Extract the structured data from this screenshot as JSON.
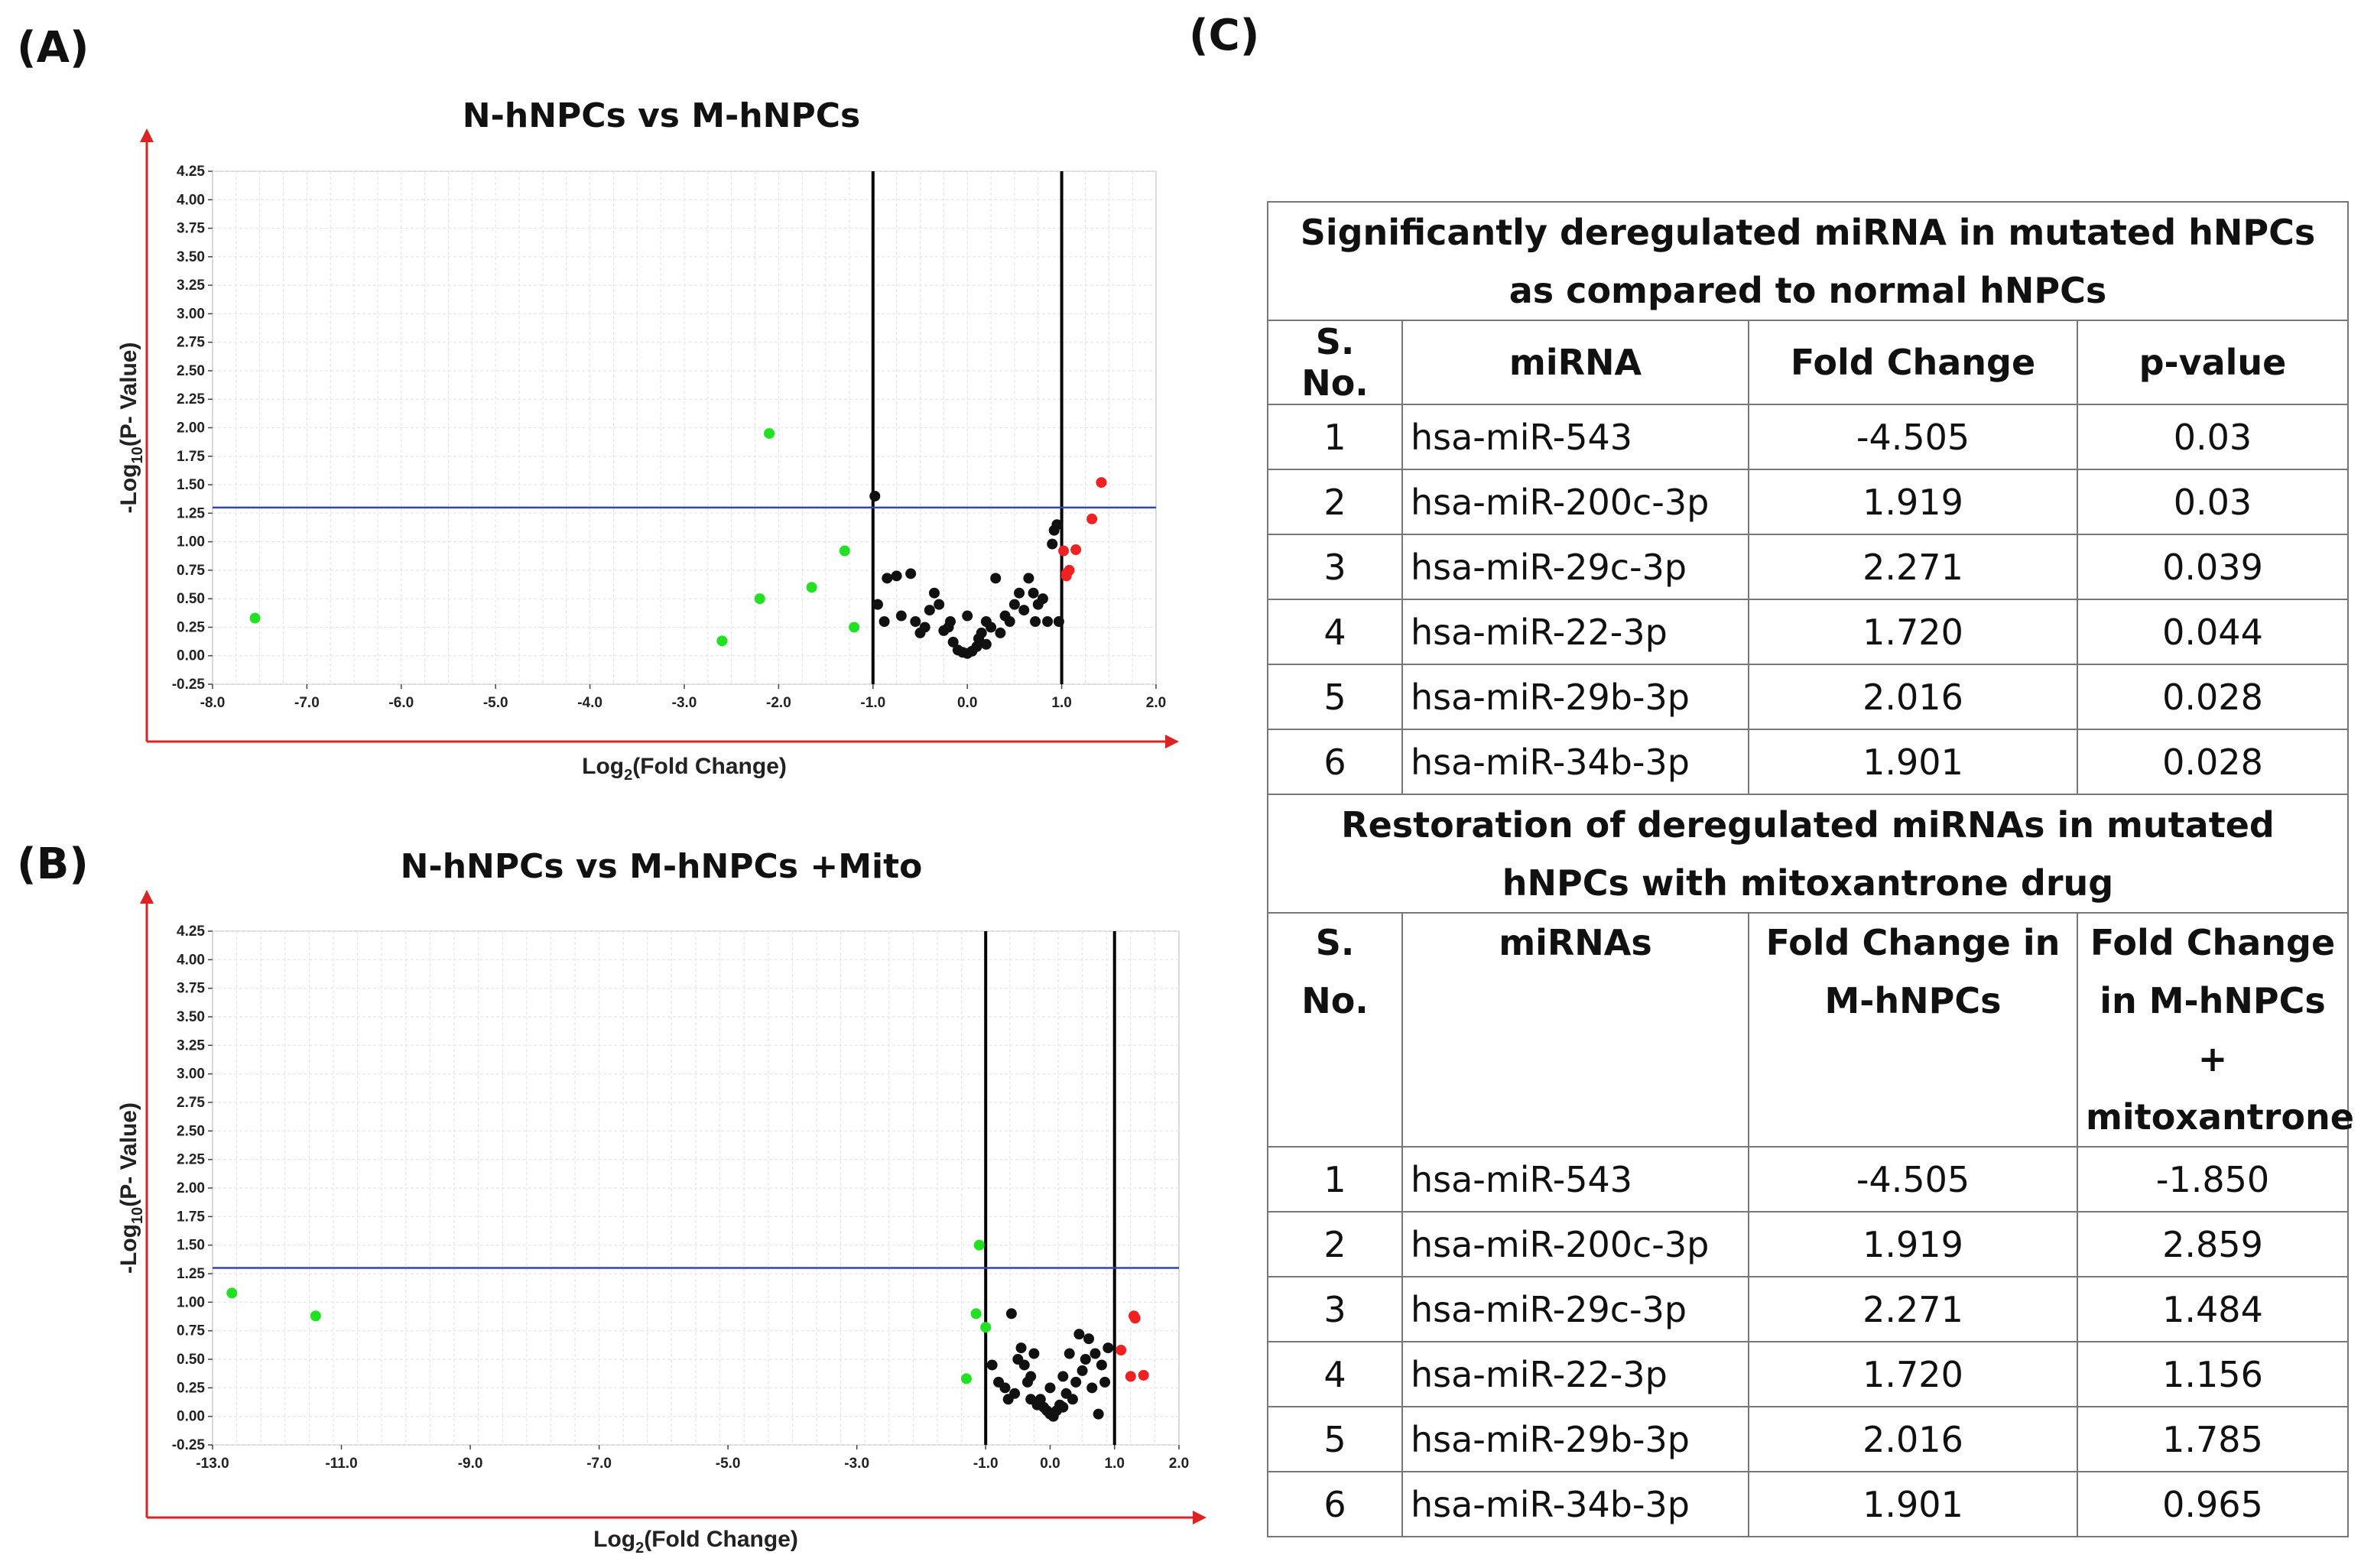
{
  "panel_labels": {
    "a": "(A)",
    "b": "(B)",
    "c": "(C)"
  },
  "chart_data": [
    {
      "type": "scatter",
      "title": "N-hNPCs vs M-hNPCs",
      "xlabel_main": "Log",
      "xlabel_sub": "2",
      "xlabel_rest": "(Fold Change)",
      "ylabel_main": "-Log",
      "ylabel_sub": "10",
      "ylabel_rest": "(P- Value)",
      "xlim": [
        -8.0,
        2.0
      ],
      "ylim": [
        -0.25,
        4.25
      ],
      "xticks": [
        -8.0,
        -7.0,
        -6.0,
        -5.0,
        -4.0,
        -3.0,
        -2.0,
        -1.0,
        0.0,
        1.0,
        2.0
      ],
      "yticks": [
        -0.25,
        0.0,
        0.25,
        0.5,
        0.75,
        1.0,
        1.25,
        1.5,
        1.75,
        2.0,
        2.25,
        2.5,
        2.75,
        3.0,
        3.25,
        3.5,
        3.75,
        4.0,
        4.25
      ],
      "xtick_labels": [
        "-8.0",
        "-7.0",
        "-6.0",
        "-5.0",
        "-4.0",
        "-3.0",
        "-2.0",
        "-1.0",
        "0.0",
        "1.0",
        "2.0"
      ],
      "ytick_labels": [
        "-0.25",
        "0.00",
        "0.25",
        "0.50",
        "0.75",
        "1.00",
        "1.25",
        "1.50",
        "1.75",
        "2.00",
        "2.25",
        "2.50",
        "2.75",
        "3.00",
        "3.25",
        "3.50",
        "3.75",
        "4.00",
        "4.25"
      ],
      "vlines": [
        -1.0,
        1.0
      ],
      "hline": 1.3,
      "colors": {
        "down": "#22e022",
        "up": "#ee2222",
        "ns": "#111111",
        "hline": "#3344bb",
        "axis": "#dd2222"
      },
      "series": [
        {
          "name": "down",
          "points": [
            [
              -7.55,
              0.33
            ],
            [
              -2.6,
              0.13
            ],
            [
              -2.2,
              0.5
            ],
            [
              -2.1,
              1.95
            ],
            [
              -1.65,
              0.6
            ],
            [
              -1.3,
              0.92
            ],
            [
              -1.2,
              0.25
            ]
          ]
        },
        {
          "name": "up",
          "points": [
            [
              1.05,
              0.72
            ],
            [
              1.08,
              0.75
            ],
            [
              1.02,
              0.92
            ],
            [
              1.15,
              0.93
            ],
            [
              1.32,
              1.2
            ],
            [
              1.42,
              1.52
            ],
            [
              1.05,
              0.7
            ]
          ]
        },
        {
          "name": "ns",
          "points": [
            [
              -0.98,
              1.4
            ],
            [
              -0.95,
              0.45
            ],
            [
              -0.85,
              0.68
            ],
            [
              -0.75,
              0.7
            ],
            [
              -0.6,
              0.72
            ],
            [
              -0.88,
              0.3
            ],
            [
              -0.7,
              0.35
            ],
            [
              -0.55,
              0.3
            ],
            [
              -0.5,
              0.2
            ],
            [
              -0.45,
              0.25
            ],
            [
              -0.35,
              0.55
            ],
            [
              -0.3,
              0.45
            ],
            [
              -0.25,
              0.22
            ],
            [
              -0.2,
              0.25
            ],
            [
              -0.18,
              0.3
            ],
            [
              -0.15,
              0.12
            ],
            [
              -0.1,
              0.05
            ],
            [
              -0.05,
              0.03
            ],
            [
              0.0,
              0.02
            ],
            [
              0.05,
              0.04
            ],
            [
              0.1,
              0.08
            ],
            [
              0.12,
              0.15
            ],
            [
              0.15,
              0.2
            ],
            [
              0.2,
              0.1
            ],
            [
              0.25,
              0.25
            ],
            [
              0.3,
              0.68
            ],
            [
              0.35,
              0.2
            ],
            [
              0.4,
              0.35
            ],
            [
              0.45,
              0.3
            ],
            [
              0.5,
              0.45
            ],
            [
              0.55,
              0.55
            ],
            [
              0.6,
              0.4
            ],
            [
              0.65,
              0.68
            ],
            [
              0.7,
              0.55
            ],
            [
              0.72,
              0.3
            ],
            [
              0.75,
              0.45
            ],
            [
              0.8,
              0.5
            ],
            [
              0.85,
              0.3
            ],
            [
              0.9,
              0.98
            ],
            [
              0.92,
              1.1
            ],
            [
              0.95,
              1.15
            ],
            [
              0.97,
              0.3
            ],
            [
              -0.4,
              0.4
            ],
            [
              0.0,
              0.35
            ],
            [
              0.2,
              0.3
            ]
          ]
        }
      ]
    },
    {
      "type": "scatter",
      "title": "N-hNPCs vs M-hNPCs +Mito",
      "xlabel_main": "Log",
      "xlabel_sub": "2",
      "xlabel_rest": "(Fold Change)",
      "ylabel_main": "-Log",
      "ylabel_sub": "10",
      "ylabel_rest": "(P- Value)",
      "xlim": [
        -13.0,
        2.0
      ],
      "ylim": [
        -0.25,
        4.25
      ],
      "xticks": [
        -13.0,
        -11.0,
        -9.0,
        -7.0,
        -5.0,
        -3.0,
        -1.0,
        0.0,
        1.0,
        2.0
      ],
      "yticks": [
        -0.25,
        0.0,
        0.25,
        0.5,
        0.75,
        1.0,
        1.25,
        1.5,
        1.75,
        2.0,
        2.25,
        2.5,
        2.75,
        3.0,
        3.25,
        3.5,
        3.75,
        4.0,
        4.25
      ],
      "xtick_labels": [
        "-13.0",
        "-11.0",
        "-9.0",
        "-7.0",
        "-5.0",
        "-3.0",
        "-1.0",
        "0.0",
        "1.0",
        "2.0"
      ],
      "ytick_labels": [
        "-0.25",
        "0.00",
        "0.25",
        "0.50",
        "0.75",
        "1.00",
        "1.25",
        "1.50",
        "1.75",
        "2.00",
        "2.25",
        "2.50",
        "2.75",
        "3.00",
        "3.25",
        "3.50",
        "3.75",
        "4.00",
        "4.25"
      ],
      "vlines": [
        -1.0,
        1.0
      ],
      "hline": 1.3,
      "colors": {
        "down": "#22e022",
        "up": "#ee2222",
        "ns": "#111111",
        "hline": "#3344bb",
        "axis": "#dd2222"
      },
      "series": [
        {
          "name": "down",
          "points": [
            [
              -12.7,
              1.08
            ],
            [
              -11.4,
              0.88
            ],
            [
              -1.1,
              1.5
            ],
            [
              -1.15,
              0.9
            ],
            [
              -1.0,
              0.78
            ],
            [
              -1.3,
              0.33
            ]
          ]
        },
        {
          "name": "up",
          "points": [
            [
              1.3,
              0.88
            ],
            [
              1.32,
              0.86
            ],
            [
              1.1,
              0.58
            ],
            [
              1.25,
              0.35
            ],
            [
              1.45,
              0.36
            ]
          ]
        },
        {
          "name": "ns",
          "points": [
            [
              -0.6,
              0.9
            ],
            [
              -0.9,
              0.45
            ],
            [
              -0.8,
              0.3
            ],
            [
              -0.7,
              0.25
            ],
            [
              -0.65,
              0.15
            ],
            [
              -0.55,
              0.2
            ],
            [
              -0.5,
              0.5
            ],
            [
              -0.45,
              0.6
            ],
            [
              -0.4,
              0.45
            ],
            [
              -0.35,
              0.3
            ],
            [
              -0.3,
              0.35
            ],
            [
              -0.25,
              0.55
            ],
            [
              -0.2,
              0.1
            ],
            [
              -0.15,
              0.15
            ],
            [
              -0.1,
              0.08
            ],
            [
              -0.05,
              0.05
            ],
            [
              0.0,
              0.02
            ],
            [
              0.05,
              0.0
            ],
            [
              0.1,
              0.05
            ],
            [
              0.15,
              0.1
            ],
            [
              0.2,
              0.35
            ],
            [
              0.25,
              0.2
            ],
            [
              0.3,
              0.55
            ],
            [
              0.35,
              0.15
            ],
            [
              0.4,
              0.3
            ],
            [
              0.45,
              0.72
            ],
            [
              0.5,
              0.4
            ],
            [
              0.55,
              0.5
            ],
            [
              0.6,
              0.68
            ],
            [
              0.65,
              0.25
            ],
            [
              0.7,
              0.55
            ],
            [
              0.75,
              0.02
            ],
            [
              0.8,
              0.45
            ],
            [
              0.85,
              0.3
            ],
            [
              0.9,
              0.6
            ],
            [
              -0.3,
              0.15
            ],
            [
              0.0,
              0.25
            ],
            [
              0.2,
              0.08
            ]
          ]
        }
      ]
    }
  ],
  "table": {
    "section1_title": "Significantly deregulated miRNA in mutated hNPCs as compared to normal hNPCs",
    "section1_headers": [
      "S. No.",
      "miRNA",
      "Fold Change",
      "p-value"
    ],
    "section1_rows": [
      [
        "1",
        "hsa-miR-543",
        "-4.505",
        "0.03"
      ],
      [
        "2",
        "hsa-miR-200c-3p",
        "1.919",
        "0.03"
      ],
      [
        "3",
        "hsa-miR-29c-3p",
        "2.271",
        "0.039"
      ],
      [
        "4",
        "hsa-miR-22-3p",
        "1.720",
        "0.044"
      ],
      [
        "5",
        "hsa-miR-29b-3p",
        "2.016",
        "0.028"
      ],
      [
        "6",
        "hsa-miR-34b-3p",
        "1.901",
        "0.028"
      ]
    ],
    "section2_title": "Restoration of deregulated miRNAs in mutated hNPCs with mitoxantrone drug",
    "section2_headers": [
      "S. No.",
      "miRNAs",
      "Fold Change in M-hNPCs",
      "Fold Change in M-hNPCs + mitoxantrone"
    ],
    "section2_rows": [
      [
        "1",
        "hsa-miR-543",
        "-4.505",
        "-1.850"
      ],
      [
        "2",
        "hsa-miR-200c-3p",
        "1.919",
        "2.859"
      ],
      [
        "3",
        "hsa-miR-29c-3p",
        "2.271",
        "1.484"
      ],
      [
        "4",
        "hsa-miR-22-3p",
        "1.720",
        "1.156"
      ],
      [
        "5",
        "hsa-miR-29b-3p",
        "2.016",
        "1.785"
      ],
      [
        "6",
        "hsa-miR-34b-3p",
        "1.901",
        "0.965"
      ]
    ]
  }
}
